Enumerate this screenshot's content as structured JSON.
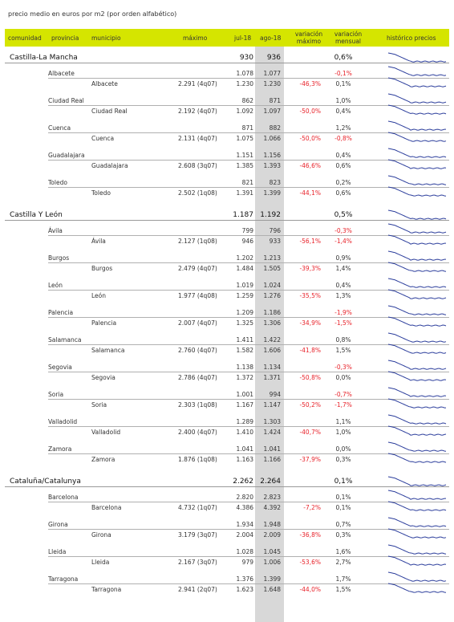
{
  "title": "precio medio en euros por m2 (por orden alfabético)",
  "headers": {
    "comunidad": "comunidad",
    "provincia": "provincia",
    "municipio": "municipio",
    "maximo": "máximo",
    "jul18": "jul-18",
    "ago18": "ago-18",
    "var_max_1": "variación",
    "var_max_2": "máximo",
    "var_men_1": "variación",
    "var_men_2": "mensual",
    "historico": "histórico precios"
  },
  "colors": {
    "header_bg": "#d5e500",
    "shade": "#d8d8d8",
    "negative": "#e8222a",
    "sparkline": "#2c3e9c"
  },
  "groups": [
    {
      "name": "Castilla-La Mancha",
      "jul": "930",
      "ago": "936",
      "var_men": "0,6%",
      "provinces": [
        {
          "name": "Albacete",
          "jul": "1.078",
          "ago": "1.077",
          "var_men": "-0,1%",
          "mun": {
            "name": "Albacete",
            "max": "2.291 (4q07)",
            "jul": "1.230",
            "ago": "1.230",
            "var_max": "-46,3%",
            "var_men": "0,1%"
          }
        },
        {
          "name": "Ciudad Real",
          "jul": "862",
          "ago": "871",
          "var_men": "1,0%",
          "mun": {
            "name": "Ciudad Real",
            "max": "2.192 (4q07)",
            "jul": "1.092",
            "ago": "1.097",
            "var_max": "-50,0%",
            "var_men": "0,4%"
          }
        },
        {
          "name": "Cuenca",
          "jul": "871",
          "ago": "882",
          "var_men": "1,2%",
          "mun": {
            "name": "Cuenca",
            "max": "2.131 (4q07)",
            "jul": "1.075",
            "ago": "1.066",
            "var_max": "-50,0%",
            "var_men": "-0,8%"
          }
        },
        {
          "name": "Guadalajara",
          "jul": "1.151",
          "ago": "1.156",
          "var_men": "0,4%",
          "mun": {
            "name": "Guadalajara",
            "max": "2.608 (3q07)",
            "jul": "1.385",
            "ago": "1.393",
            "var_max": "-46,6%",
            "var_men": "0,6%"
          }
        },
        {
          "name": "Toledo",
          "jul": "821",
          "ago": "823",
          "var_men": "0,2%",
          "mun": {
            "name": "Toledo",
            "max": "2.502 (1q08)",
            "jul": "1.391",
            "ago": "1.399",
            "var_max": "-44,1%",
            "var_men": "0,6%"
          }
        }
      ]
    },
    {
      "name": "Castilla Y León",
      "jul": "1.187",
      "ago": "1.192",
      "var_men": "0,5%",
      "provinces": [
        {
          "name": "Ávila",
          "jul": "799",
          "ago": "796",
          "var_men": "-0,3%",
          "mun": {
            "name": "Ávila",
            "max": "2.127 (1q08)",
            "jul": "946",
            "ago": "933",
            "var_max": "-56,1%",
            "var_men": "-1,4%"
          }
        },
        {
          "name": "Burgos",
          "jul": "1.202",
          "ago": "1.213",
          "var_men": "0,9%",
          "mun": {
            "name": "Burgos",
            "max": "2.479 (4q07)",
            "jul": "1.484",
            "ago": "1.505",
            "var_max": "-39,3%",
            "var_men": "1,4%"
          }
        },
        {
          "name": "León",
          "jul": "1.019",
          "ago": "1.024",
          "var_men": "0,4%",
          "mun": {
            "name": "León",
            "max": "1.977 (4q08)",
            "jul": "1.259",
            "ago": "1.276",
            "var_max": "-35,5%",
            "var_men": "1,3%"
          }
        },
        {
          "name": "Palencia",
          "jul": "1.209",
          "ago": "1.186",
          "var_men": "-1,9%",
          "mun": {
            "name": "Palencia",
            "max": "2.007 (4q07)",
            "jul": "1.325",
            "ago": "1.306",
            "var_max": "-34,9%",
            "var_men": "-1,5%"
          }
        },
        {
          "name": "Salamanca",
          "jul": "1.411",
          "ago": "1.422",
          "var_men": "0,8%",
          "mun": {
            "name": "Salamanca",
            "max": "2.760 (4q07)",
            "jul": "1.582",
            "ago": "1.606",
            "var_max": "-41,8%",
            "var_men": "1,5%"
          }
        },
        {
          "name": "Segovia",
          "jul": "1.138",
          "ago": "1.134",
          "var_men": "-0,3%",
          "mun": {
            "name": "Segovia",
            "max": "2.786 (4q07)",
            "jul": "1.372",
            "ago": "1.371",
            "var_max": "-50,8%",
            "var_men": "0,0%"
          }
        },
        {
          "name": "Soria",
          "jul": "1.001",
          "ago": "994",
          "var_men": "-0,7%",
          "mun": {
            "name": "Soria",
            "max": "2.303 (1q08)",
            "jul": "1.167",
            "ago": "1.147",
            "var_max": "-50,2%",
            "var_men": "-1,7%"
          }
        },
        {
          "name": "Valladolid",
          "jul": "1.289",
          "ago": "1.303",
          "var_men": "1,1%",
          "mun": {
            "name": "Valladolid",
            "max": "2.400 (4q07)",
            "jul": "1.410",
            "ago": "1.424",
            "var_max": "-40,7%",
            "var_men": "1,0%"
          }
        },
        {
          "name": "Zamora",
          "jul": "1.041",
          "ago": "1.041",
          "var_men": "0,0%",
          "mun": {
            "name": "Zamora",
            "max": "1.876 (1q08)",
            "jul": "1.163",
            "ago": "1.166",
            "var_max": "-37,9%",
            "var_men": "0,3%"
          }
        }
      ]
    },
    {
      "name": "Cataluña/Catalunya",
      "jul": "2.262",
      "ago": "2.264",
      "var_men": "0,1%",
      "provinces": [
        {
          "name": "Barcelona",
          "jul": "2.820",
          "ago": "2.823",
          "var_men": "0,1%",
          "mun": {
            "name": "Barcelona",
            "max": "4.732 (1q07)",
            "jul": "4.386",
            "ago": "4.392",
            "var_max": "-7,2%",
            "var_men": "0,1%"
          }
        },
        {
          "name": "Girona",
          "jul": "1.934",
          "ago": "1.948",
          "var_men": "0,7%",
          "mun": {
            "name": "Girona",
            "max": "3.179 (3q07)",
            "jul": "2.004",
            "ago": "2.009",
            "var_max": "-36,8%",
            "var_men": "0,3%"
          }
        },
        {
          "name": "Lleida",
          "jul": "1.028",
          "ago": "1.045",
          "var_men": "1,6%",
          "mun": {
            "name": "Lleida",
            "max": "2.167 (3q07)",
            "jul": "979",
            "ago": "1.006",
            "var_max": "-53,6%",
            "var_men": "2,7%"
          }
        },
        {
          "name": "Tarragona",
          "jul": "1.376",
          "ago": "1.399",
          "var_men": "1,7%",
          "mun": {
            "name": "Tarragona",
            "max": "2.941 (2q07)",
            "jul": "1.623",
            "ago": "1.648",
            "var_max": "-44,0%",
            "var_men": "1,5%"
          }
        }
      ]
    }
  ]
}
